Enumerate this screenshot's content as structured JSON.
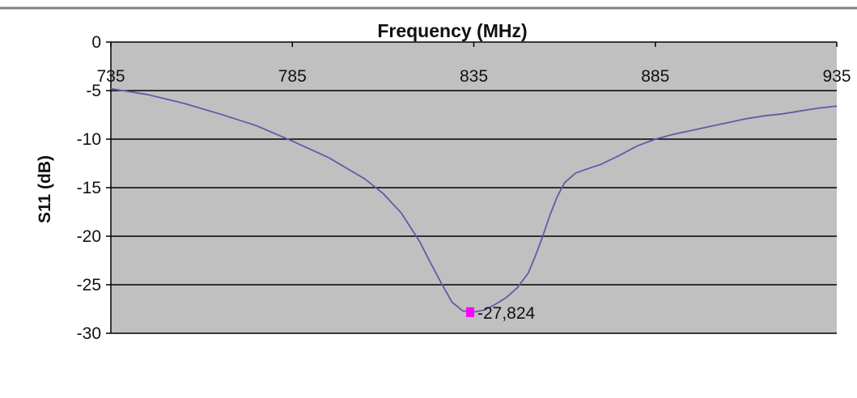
{
  "chart_data": {
    "type": "line",
    "title": "",
    "xlabel": "Frequency (MHz)",
    "ylabel": "S11 (dB)",
    "xlim": [
      735,
      935
    ],
    "ylim": [
      -30,
      0
    ],
    "x_ticks": [
      735,
      785,
      835,
      885,
      935
    ],
    "x_tick_labels": [
      "735",
      "785",
      "835",
      "885",
      "935"
    ],
    "y_ticks": [
      0,
      -5,
      -10,
      -15,
      -20,
      -25,
      -30
    ],
    "y_tick_labels": [
      "0",
      "-5",
      "-10",
      "-15",
      "-20",
      "-25",
      "-30"
    ],
    "x_axis_position": "top",
    "grid": "horizontal",
    "legend": "none",
    "plot_background_color": "#c0c0c0",
    "gridline_color": "#000000",
    "line_color": "#5b5ea6",
    "marker_color": "#ff00ff",
    "series": [
      {
        "x": [
          735,
          745,
          755,
          765,
          775,
          785,
          795,
          805,
          810,
          815,
          820,
          823,
          826,
          829,
          832,
          835,
          838,
          841,
          844,
          847,
          850,
          852,
          854,
          856,
          858,
          860,
          863,
          866,
          870,
          875,
          880,
          885,
          890,
          895,
          900,
          905,
          910,
          915,
          920,
          925,
          930,
          935
        ],
        "y": [
          -4.8,
          -5.4,
          -6.3,
          -7.4,
          -8.6,
          -10.2,
          -11.9,
          -14.1,
          -15.6,
          -17.6,
          -20.5,
          -22.7,
          -24.8,
          -26.8,
          -27.7,
          -27.8,
          -27.6,
          -27.0,
          -26.3,
          -25.3,
          -23.8,
          -22.0,
          -20.0,
          -17.8,
          -15.9,
          -14.5,
          -13.5,
          -13.1,
          -12.6,
          -11.7,
          -10.7,
          -10.0,
          -9.5,
          -9.1,
          -8.7,
          -8.3,
          -7.9,
          -7.6,
          -7.4,
          -7.1,
          -6.8,
          -6.6
        ]
      }
    ],
    "annotations": [
      {
        "x": 834,
        "y": -27.824,
        "text": "-27,824"
      }
    ]
  }
}
